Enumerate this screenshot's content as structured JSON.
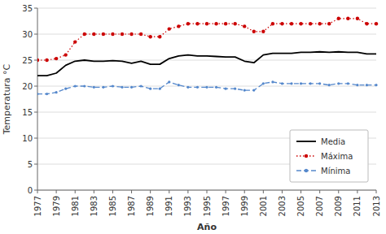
{
  "chart_data": {
    "type": "line",
    "xlabel": "Año",
    "ylabel": "Temperatura °C",
    "x": [
      1977,
      1978,
      1979,
      1980,
      1981,
      1982,
      1983,
      1984,
      1985,
      1986,
      1987,
      1988,
      1989,
      1990,
      1991,
      1992,
      1993,
      1994,
      1995,
      1996,
      1997,
      1998,
      1999,
      2000,
      2001,
      2002,
      2003,
      2004,
      2005,
      2006,
      2007,
      2008,
      2009,
      2010,
      2011,
      2012,
      2013
    ],
    "series": [
      {
        "name": "Media",
        "color": "#000000",
        "line_style": "solid",
        "values": [
          22.0,
          22.0,
          22.5,
          24.0,
          24.8,
          25.0,
          24.8,
          24.8,
          24.9,
          24.8,
          24.4,
          24.8,
          24.2,
          24.2,
          25.3,
          25.8,
          26.0,
          25.8,
          25.8,
          25.7,
          25.6,
          25.6,
          24.8,
          24.5,
          26.0,
          26.3,
          26.3,
          26.3,
          26.5,
          26.5,
          26.6,
          26.5,
          26.6,
          26.5,
          26.5,
          26.2,
          26.2
        ]
      },
      {
        "name": "Máxima",
        "color": "#cc0000",
        "line_style": "dotted",
        "marker": "circle",
        "values": [
          25.0,
          25.0,
          25.3,
          26.0,
          28.5,
          30.0,
          30.0,
          30.0,
          30.0,
          30.0,
          30.0,
          30.0,
          29.5,
          29.5,
          31.0,
          31.5,
          32.0,
          32.0,
          32.0,
          32.0,
          32.0,
          32.0,
          31.5,
          30.5,
          30.5,
          32.0,
          32.0,
          32.0,
          32.0,
          32.0,
          32.0,
          32.0,
          33.0,
          33.0,
          33.0,
          32.0,
          32.0
        ]
      },
      {
        "name": "Mínima",
        "color": "#5588cc",
        "line_style": "dashed",
        "marker": "circle",
        "values": [
          18.5,
          18.5,
          18.8,
          19.5,
          20.0,
          20.0,
          19.8,
          19.8,
          20.0,
          19.8,
          19.8,
          20.0,
          19.5,
          19.5,
          20.8,
          20.2,
          19.8,
          19.8,
          19.8,
          19.8,
          19.5,
          19.5,
          19.2,
          19.2,
          20.5,
          20.8,
          20.5,
          20.5,
          20.5,
          20.5,
          20.5,
          20.2,
          20.5,
          20.5,
          20.2,
          20.2,
          20.2
        ]
      }
    ],
    "xlim": [
      1977,
      2013
    ],
    "xticks": [
      1977,
      1979,
      1981,
      1983,
      1985,
      1987,
      1989,
      1991,
      1993,
      1995,
      1997,
      1999,
      2001,
      2003,
      2005,
      2007,
      2009,
      2011,
      2013
    ],
    "ylim": [
      0,
      35
    ],
    "yticks": [
      0,
      5,
      10,
      15,
      20,
      25,
      30,
      35
    ],
    "grid": true,
    "legend": "lower right"
  }
}
